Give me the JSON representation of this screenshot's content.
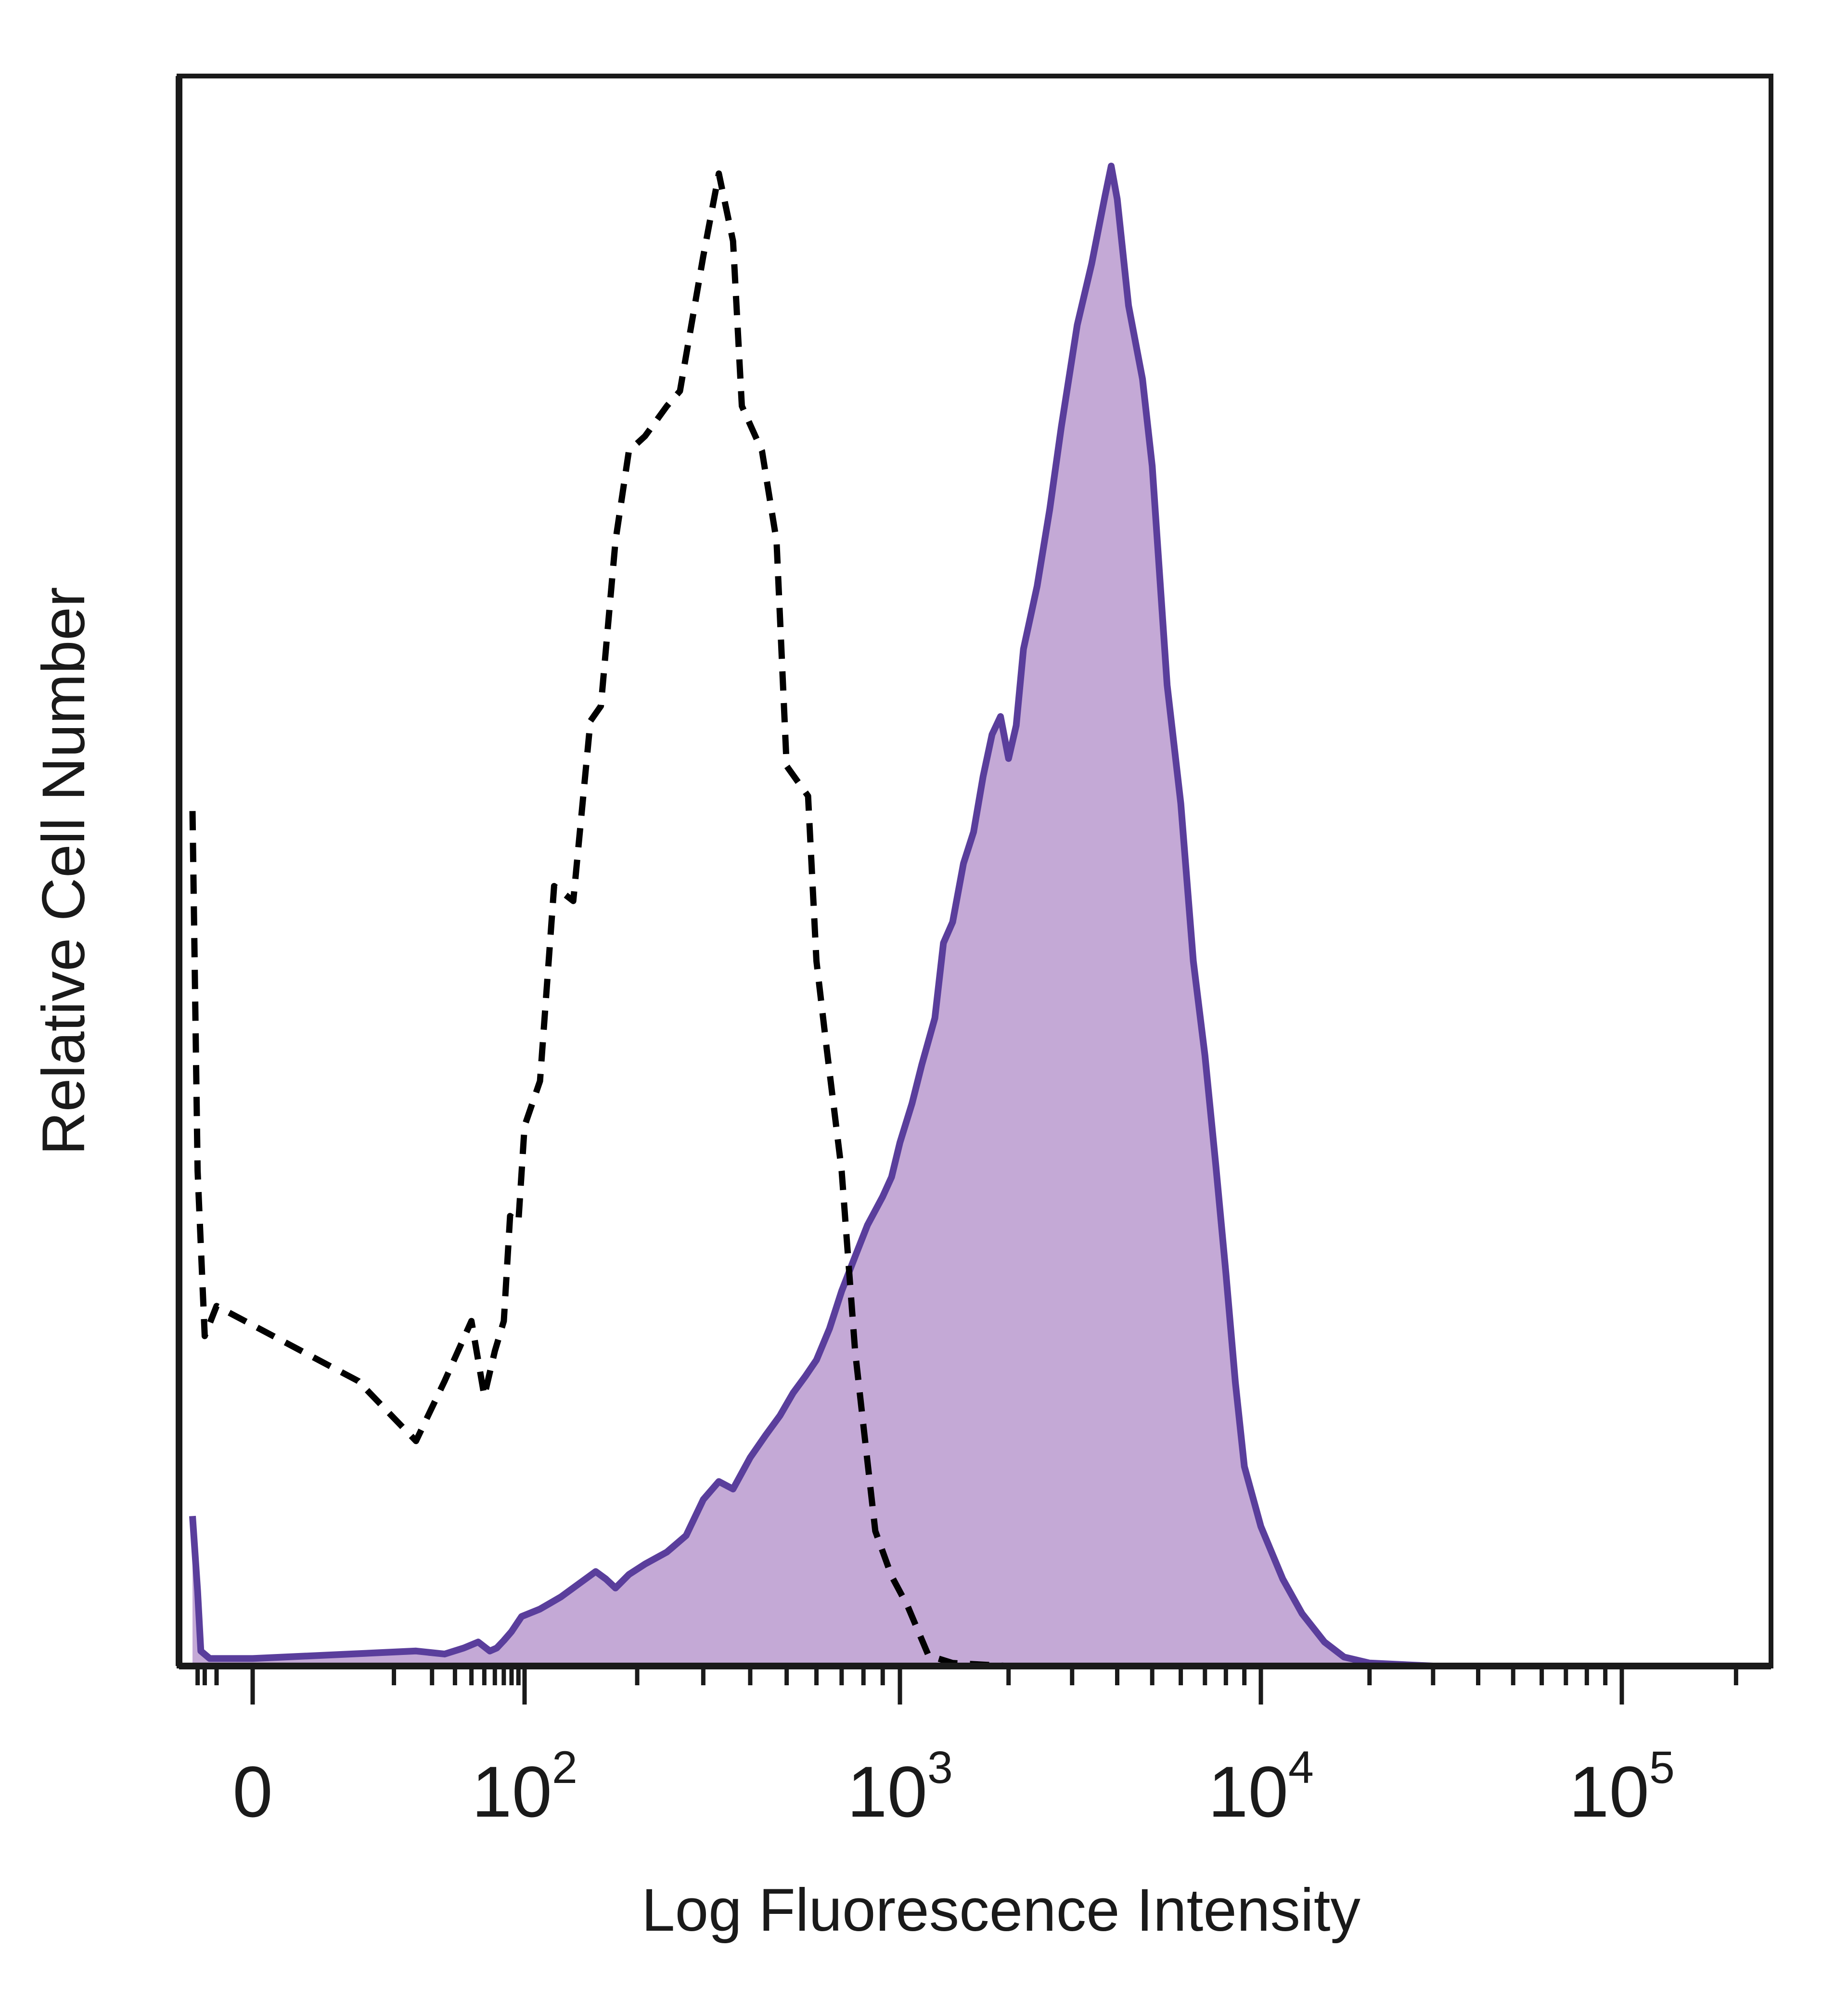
{
  "chart_data": {
    "type": "area",
    "title": "",
    "xlabel": "Log Fluorescence Intensity",
    "ylabel": "Relative Cell Number",
    "x_scale": "biexponential",
    "x_ticks": [
      {
        "value": 0,
        "label": "0",
        "exp": ""
      },
      {
        "value": 100,
        "label": "10",
        "exp": "2"
      },
      {
        "value": 1000,
        "label": "10",
        "exp": "3"
      },
      {
        "value": 10000,
        "label": "10",
        "exp": "4"
      },
      {
        "value": 100000,
        "label": "10",
        "exp": "5"
      }
    ],
    "xlim": [
      -40,
      220000
    ],
    "ylim": [
      0,
      100
    ],
    "grid": false,
    "legend": "none",
    "series": [
      {
        "style": "filled",
        "color": "#5a3e9c",
        "fill": "#c4a9d6",
        "points": [
          [
            -40,
            10
          ],
          [
            -30,
            5
          ],
          [
            -25,
            1
          ],
          [
            -15,
            0.5
          ],
          [
            0,
            0.5
          ],
          [
            15,
            1
          ],
          [
            25,
            0.8
          ],
          [
            35,
            1.2
          ],
          [
            45,
            1.6
          ],
          [
            55,
            1
          ],
          [
            62,
            1.2
          ],
          [
            70,
            1.7
          ],
          [
            80,
            2.3
          ],
          [
            95,
            3.3
          ],
          [
            110,
            3.8
          ],
          [
            125,
            4.6
          ],
          [
            140,
            5.5
          ],
          [
            155,
            6.3
          ],
          [
            165,
            5.8
          ],
          [
            175,
            5.2
          ],
          [
            190,
            6.1
          ],
          [
            210,
            6.8
          ],
          [
            240,
            7.6
          ],
          [
            270,
            8.7
          ],
          [
            300,
            11.1
          ],
          [
            330,
            12.3
          ],
          [
            360,
            11.8
          ],
          [
            400,
            13.9
          ],
          [
            440,
            15.4
          ],
          [
            480,
            16.7
          ],
          [
            520,
            18.2
          ],
          [
            560,
            19.3
          ],
          [
            600,
            20.4
          ],
          [
            650,
            22.5
          ],
          [
            700,
            25
          ],
          [
            760,
            27.3
          ],
          [
            820,
            29.4
          ],
          [
            900,
            31.3
          ],
          [
            950,
            32.6
          ],
          [
            1000,
            34.9
          ],
          [
            1080,
            37.5
          ],
          [
            1150,
            40.1
          ],
          [
            1250,
            43.2
          ],
          [
            1320,
            48.2
          ],
          [
            1400,
            49.6
          ],
          [
            1500,
            53.5
          ],
          [
            1600,
            55.6
          ],
          [
            1700,
            59.3
          ],
          [
            1800,
            62.1
          ],
          [
            1900,
            63.3
          ],
          [
            2000,
            60.5
          ],
          [
            2100,
            62.7
          ],
          [
            2200,
            67.8
          ],
          [
            2400,
            72
          ],
          [
            2600,
            77.1
          ],
          [
            2800,
            82.6
          ],
          [
            3100,
            89.4
          ],
          [
            3400,
            93.5
          ],
          [
            3700,
            98
          ],
          [
            3850,
            100
          ],
          [
            4000,
            97.8
          ],
          [
            4300,
            90.7
          ],
          [
            4700,
            85.8
          ],
          [
            5000,
            80
          ],
          [
            5500,
            65.4
          ],
          [
            6000,
            57.5
          ],
          [
            6500,
            47
          ],
          [
            7000,
            40.7
          ],
          [
            7500,
            33.4
          ],
          [
            8000,
            26.2
          ],
          [
            8500,
            18.9
          ],
          [
            9000,
            13.3
          ],
          [
            10000,
            9.3
          ],
          [
            11500,
            5.8
          ],
          [
            13000,
            3.5
          ],
          [
            15000,
            1.6
          ],
          [
            17000,
            0.6
          ],
          [
            20000,
            0.2
          ],
          [
            30000,
            0
          ],
          [
            100000,
            0
          ],
          [
            220000,
            0
          ]
        ]
      },
      {
        "style": "dashed",
        "color": "#000000",
        "points": [
          [
            -40,
            57
          ],
          [
            -30,
            33
          ],
          [
            -20,
            22
          ],
          [
            -10,
            24
          ],
          [
            5,
            19
          ],
          [
            15,
            15
          ],
          [
            25,
            19
          ],
          [
            40,
            23
          ],
          [
            50,
            18
          ],
          [
            60,
            21
          ],
          [
            70,
            23
          ],
          [
            78,
            30
          ],
          [
            90,
            29.6
          ],
          [
            100,
            36
          ],
          [
            110,
            39
          ],
          [
            120,
            52
          ],
          [
            135,
            51
          ],
          [
            150,
            63
          ],
          [
            160,
            64
          ],
          [
            175,
            75
          ],
          [
            190,
            81
          ],
          [
            210,
            82
          ],
          [
            240,
            84
          ],
          [
            260,
            85
          ],
          [
            300,
            94
          ],
          [
            330,
            99.5
          ],
          [
            360,
            95
          ],
          [
            380,
            84
          ],
          [
            430,
            81
          ],
          [
            470,
            75
          ],
          [
            500,
            60
          ],
          [
            570,
            58
          ],
          [
            600,
            47
          ],
          [
            640,
            41
          ],
          [
            700,
            33
          ],
          [
            760,
            21
          ],
          [
            800,
            16
          ],
          [
            860,
            9
          ],
          [
            950,
            6
          ],
          [
            1050,
            4
          ],
          [
            1200,
            0.7
          ],
          [
            1400,
            0.2
          ],
          [
            2000,
            0
          ],
          [
            220000,
            0
          ]
        ]
      }
    ]
  }
}
